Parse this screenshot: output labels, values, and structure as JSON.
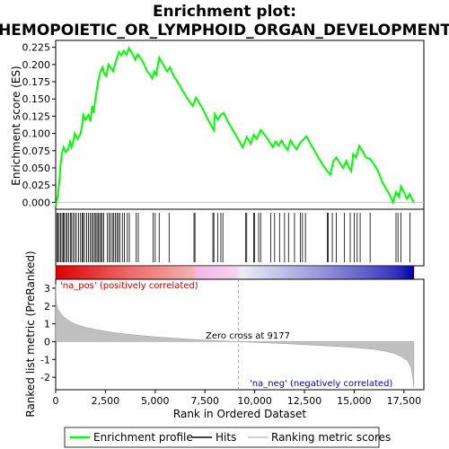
{
  "chart_data": {
    "type": "line",
    "title_line1": "Enrichment plot:",
    "title_line2": "HEMOPOIETIC_OR_LYMPHOID_ORGAN_DEVELOPMENT",
    "es_panel": {
      "ylabel": "Enrichment score (ES)",
      "ylim": [
        -0.01,
        0.235
      ],
      "yticks": [
        0.0,
        0.025,
        0.05,
        0.075,
        0.1,
        0.125,
        0.15,
        0.175,
        0.2,
        0.225
      ],
      "ytick_labels": [
        "0.000",
        "0.025",
        "0.050",
        "0.075",
        "0.100",
        "0.125",
        "0.150",
        "0.175",
        "0.200",
        "0.225"
      ],
      "line_color": "#00ff00",
      "profile": [
        [
          0,
          -0.005
        ],
        [
          100,
          0.008
        ],
        [
          180,
          0.03
        ],
        [
          250,
          0.055
        ],
        [
          320,
          0.072
        ],
        [
          400,
          0.08
        ],
        [
          500,
          0.073
        ],
        [
          620,
          0.076
        ],
        [
          720,
          0.088
        ],
        [
          800,
          0.08
        ],
        [
          900,
          0.09
        ],
        [
          960,
          0.1
        ],
        [
          1100,
          0.092
        ],
        [
          1250,
          0.1
        ],
        [
          1320,
          0.11
        ],
        [
          1380,
          0.127
        ],
        [
          1500,
          0.12
        ],
        [
          1650,
          0.127
        ],
        [
          1750,
          0.118
        ],
        [
          1830,
          0.14
        ],
        [
          1900,
          0.13
        ],
        [
          1980,
          0.147
        ],
        [
          2050,
          0.16
        ],
        [
          2150,
          0.178
        ],
        [
          2250,
          0.19
        ],
        [
          2350,
          0.196
        ],
        [
          2450,
          0.186
        ],
        [
          2550,
          0.183
        ],
        [
          2650,
          0.2
        ],
        [
          2760,
          0.196
        ],
        [
          2880,
          0.19
        ],
        [
          2980,
          0.2
        ],
        [
          3080,
          0.21
        ],
        [
          3180,
          0.218
        ],
        [
          3300,
          0.213
        ],
        [
          3420,
          0.22
        ],
        [
          3550,
          0.214
        ],
        [
          3680,
          0.224
        ],
        [
          3850,
          0.216
        ],
        [
          4000,
          0.207
        ],
        [
          4120,
          0.215
        ],
        [
          4300,
          0.208
        ],
        [
          4450,
          0.2
        ],
        [
          4600,
          0.19
        ],
        [
          4750,
          0.185
        ],
        [
          4850,
          0.18
        ],
        [
          4950,
          0.19
        ],
        [
          5050,
          0.185
        ],
        [
          5200,
          0.21
        ],
        [
          5400,
          0.2
        ],
        [
          5600,
          0.19
        ],
        [
          5750,
          0.196
        ],
        [
          5900,
          0.185
        ],
        [
          6100,
          0.176
        ],
        [
          6300,
          0.166
        ],
        [
          6500,
          0.156
        ],
        [
          6700,
          0.147
        ],
        [
          6900,
          0.14
        ],
        [
          7050,
          0.152
        ],
        [
          7200,
          0.145
        ],
        [
          7400,
          0.135
        ],
        [
          7600,
          0.123
        ],
        [
          7800,
          0.112
        ],
        [
          7950,
          0.105
        ],
        [
          8000,
          0.128
        ],
        [
          8150,
          0.12
        ],
        [
          8300,
          0.127
        ],
        [
          8450,
          0.13
        ],
        [
          8600,
          0.12
        ],
        [
          8800,
          0.11
        ],
        [
          9000,
          0.1
        ],
        [
          9200,
          0.09
        ],
        [
          9400,
          0.08
        ],
        [
          9600,
          0.095
        ],
        [
          9800,
          0.085
        ],
        [
          9950,
          0.098
        ],
        [
          10100,
          0.092
        ],
        [
          10300,
          0.105
        ],
        [
          10500,
          0.098
        ],
        [
          10700,
          0.09
        ],
        [
          10900,
          0.08
        ],
        [
          11050,
          0.088
        ],
        [
          11200,
          0.082
        ],
        [
          11350,
          0.09
        ],
        [
          11500,
          0.082
        ],
        [
          11650,
          0.076
        ],
        [
          11800,
          0.09
        ],
        [
          11950,
          0.083
        ],
        [
          12100,
          0.077
        ],
        [
          12250,
          0.085
        ],
        [
          12400,
          0.09
        ],
        [
          12600,
          0.096
        ],
        [
          12800,
          0.085
        ],
        [
          13000,
          0.075
        ],
        [
          13200,
          0.065
        ],
        [
          13400,
          0.055
        ],
        [
          13600,
          0.047
        ],
        [
          13800,
          0.04
        ],
        [
          13950,
          0.06
        ],
        [
          14100,
          0.065
        ],
        [
          14300,
          0.056
        ],
        [
          14450,
          0.05
        ],
        [
          14600,
          0.06
        ],
        [
          14750,
          0.05
        ],
        [
          14850,
          0.045
        ],
        [
          14950,
          0.07
        ],
        [
          15100,
          0.065
        ],
        [
          15250,
          0.082
        ],
        [
          15400,
          0.075
        ],
        [
          15600,
          0.065
        ],
        [
          15800,
          0.063
        ],
        [
          16000,
          0.055
        ],
        [
          16200,
          0.045
        ],
        [
          16400,
          0.03
        ],
        [
          16600,
          0.02
        ],
        [
          16800,
          0.01
        ],
        [
          16950,
          0.0
        ],
        [
          17100,
          0.015
        ],
        [
          17250,
          0.008
        ],
        [
          17350,
          0.023
        ],
        [
          17500,
          0.015
        ],
        [
          17650,
          0.005
        ],
        [
          17780,
          0.012
        ],
        [
          17900,
          0.005
        ],
        [
          18000,
          0.0
        ]
      ]
    },
    "hits_panel": {
      "hit_positions": [
        60,
        120,
        180,
        250,
        320,
        380,
        430,
        520,
        580,
        660,
        750,
        800,
        880,
        960,
        1040,
        1150,
        1250,
        1330,
        1380,
        1450,
        1560,
        1650,
        1730,
        1810,
        1880,
        1950,
        2020,
        2080,
        2150,
        2210,
        2280,
        2340,
        2410,
        2600,
        2680,
        2760,
        2850,
        2920,
        3000,
        3080,
        3150,
        3220,
        3350,
        3450,
        3600,
        3700,
        4050,
        4150,
        4900,
        5000,
        5200,
        5700,
        6950,
        7000,
        7900,
        7950,
        8150,
        8300,
        8400,
        9550,
        9600,
        9950,
        10000,
        10200,
        10300,
        10800,
        11000,
        11250,
        11500,
        11700,
        12000,
        12300,
        12400,
        12550,
        13650,
        13700,
        13900,
        14100,
        14500,
        14800,
        15000,
        15150,
        15300,
        15800,
        17100,
        17200,
        17350,
        17800
      ],
      "n_genes": 18000,
      "gradient_stops": [
        {
          "pos": 0.0,
          "color": "#dd0000"
        },
        {
          "pos": 0.2,
          "color": "#ee6666"
        },
        {
          "pos": 0.38,
          "color": "#f3b0b0"
        },
        {
          "pos": 0.4,
          "color": "#f5b8e8"
        },
        {
          "pos": 0.5,
          "color": "#f7d0ee"
        },
        {
          "pos": 0.52,
          "color": "#ececf7"
        },
        {
          "pos": 0.6,
          "color": "#ccccee"
        },
        {
          "pos": 0.73,
          "color": "#9999dd"
        },
        {
          "pos": 0.85,
          "color": "#6666cc"
        },
        {
          "pos": 0.95,
          "color": "#3333bb"
        },
        {
          "pos": 1.0,
          "color": "#0000aa"
        }
      ]
    },
    "rank_panel": {
      "xlabel": "Rank in Ordered Dataset",
      "ylabel": "Ranked list metric (PreRanked)",
      "ylim": [
        -2.7,
        3.5
      ],
      "yticks": [
        -2,
        -1,
        0,
        1,
        2,
        3
      ],
      "ytick_labels": [
        "-2",
        "-1",
        "0",
        "1",
        "2",
        "3"
      ],
      "xticks": [
        0,
        2500,
        5000,
        7500,
        10000,
        12500,
        15000,
        17500
      ],
      "xtick_labels": [
        "0",
        "2,500",
        "5,000",
        "7,500",
        "10,000",
        "12,500",
        "15,000",
        "17,500"
      ],
      "xlim": [
        0,
        18500
      ],
      "fill_color": "#c0c0c0",
      "metric_curve": [
        [
          0,
          3.2
        ],
        [
          30,
          2.2
        ],
        [
          100,
          1.85
        ],
        [
          200,
          1.65
        ],
        [
          400,
          1.4
        ],
        [
          700,
          1.15
        ],
        [
          1000,
          0.98
        ],
        [
          1500,
          0.8
        ],
        [
          2000,
          0.68
        ],
        [
          2500,
          0.58
        ],
        [
          3000,
          0.5
        ],
        [
          4000,
          0.37
        ],
        [
          5000,
          0.27
        ],
        [
          6000,
          0.19
        ],
        [
          7000,
          0.12
        ],
        [
          8000,
          0.06
        ],
        [
          9177,
          0.0
        ],
        [
          10000,
          -0.04
        ],
        [
          11000,
          -0.09
        ],
        [
          12000,
          -0.14
        ],
        [
          13000,
          -0.2
        ],
        [
          14000,
          -0.26
        ],
        [
          15000,
          -0.33
        ],
        [
          16000,
          -0.43
        ],
        [
          16500,
          -0.52
        ],
        [
          17000,
          -0.66
        ],
        [
          17400,
          -0.85
        ],
        [
          17700,
          -1.1
        ],
        [
          17850,
          -1.45
        ],
        [
          17950,
          -2.0
        ],
        [
          18000,
          -2.6
        ]
      ],
      "zero_cross_label": "Zero cross at 9177",
      "zero_cross": 9177,
      "pos_label": "'na_pos' (positively correlated)",
      "neg_label": "'na_neg' (negatively correlated)",
      "pos_label_color": "#cc0000",
      "neg_label_color": "#0000cc"
    },
    "legend": {
      "items": [
        {
          "label": "Enrichment profile",
          "color": "#00ff00"
        },
        {
          "label": "Hits",
          "color": "#000000"
        },
        {
          "label": "Ranking metric scores",
          "color": "#c0c0c0"
        }
      ]
    }
  }
}
